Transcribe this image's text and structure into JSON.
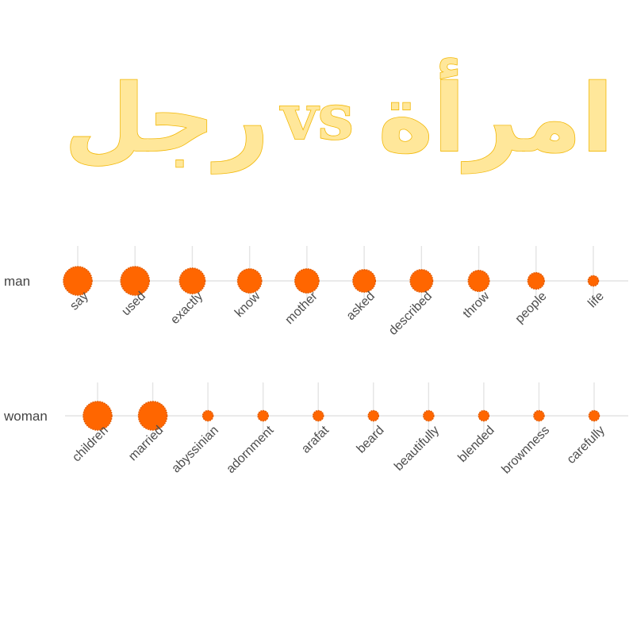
{
  "title": {
    "left": "رجل",
    "middle": "vs",
    "right": "امرأة"
  },
  "colors": {
    "point": "#ff6600",
    "point_edge": "#e65c00",
    "title_fill": "#ffe79a",
    "title_stroke": "#f2b705"
  },
  "chart_data": [
    {
      "type": "scatter",
      "row": "man",
      "categories": [
        "say",
        "used",
        "exactly",
        "know",
        "mother",
        "asked",
        "described",
        "throw",
        "people",
        "life"
      ],
      "values": [
        10,
        10,
        9,
        8.5,
        8.5,
        8,
        8,
        7.5,
        6,
        4
      ]
    },
    {
      "type": "scatter",
      "row": "woman",
      "categories": [
        "children",
        "married",
        "abyssinian",
        "adornment",
        "arafat",
        "beard",
        "beautifully",
        "blended",
        "brownness",
        "carefully"
      ],
      "values": [
        10,
        10,
        4,
        4,
        4,
        4,
        4,
        4,
        4,
        4
      ]
    }
  ]
}
